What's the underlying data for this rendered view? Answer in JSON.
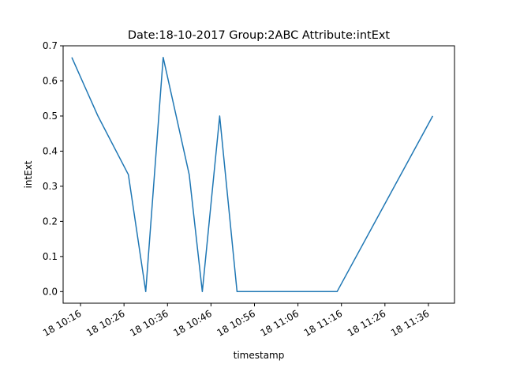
{
  "chart_data": {
    "type": "line",
    "title": "Date:18-10-2017  Group:2ABC Attribute:intExt",
    "xlabel": "timestamp",
    "ylabel": "intExt",
    "ylim": [
      -0.033,
      0.7
    ],
    "xlim_minutes": [
      10.2,
      11.42
    ],
    "grid": false,
    "legend": "none",
    "color": "#1f77b4",
    "x_ticks": [
      "18 10:16",
      "18 10:26",
      "18 10:36",
      "18 10:46",
      "18 10:56",
      "18 11:06",
      "18 11:16",
      "18 11:26",
      "18 11:36"
    ],
    "y_ticks": [
      "0.0",
      "0.1",
      "0.2",
      "0.3",
      "0.4",
      "0.5",
      "0.6",
      "0.7"
    ],
    "y_tick_values": [
      0.0,
      0.1,
      0.2,
      0.3,
      0.4,
      0.5,
      0.6,
      0.7
    ],
    "series": [
      {
        "x": [
          "10:14",
          "10:17",
          "10:20",
          "10:27",
          "10:31",
          "10:35",
          "10:41",
          "10:44",
          "10:48",
          "10:52",
          "11:15",
          "11:37"
        ],
        "y": [
          0.667,
          0.583,
          0.5,
          0.333,
          0.0,
          0.667,
          0.333,
          0.0,
          0.5,
          0.0,
          0.0,
          0.5
        ]
      }
    ]
  }
}
